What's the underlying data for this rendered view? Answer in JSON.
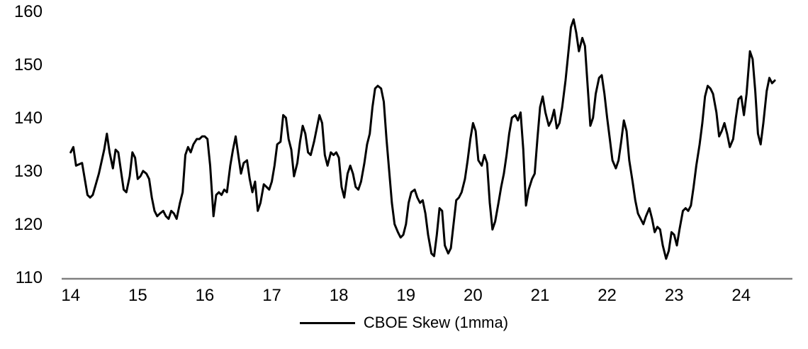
{
  "chart_data": {
    "type": "line",
    "title": "",
    "xlabel": "",
    "ylabel": "",
    "xlim": [
      13.95,
      24.7
    ],
    "ylim": [
      110,
      160
    ],
    "x_ticks": [
      14,
      15,
      16,
      17,
      18,
      19,
      20,
      21,
      22,
      23,
      24
    ],
    "y_ticks": [
      110,
      120,
      130,
      140,
      150,
      160
    ],
    "grid": false,
    "legend_position": "bottom",
    "line_color": "#000000",
    "axis_color": "#808080",
    "series": [
      {
        "name": "CBOE Skew (1mma)",
        "points": [
          [
            14.0,
            133.5
          ],
          [
            14.04,
            134.5
          ],
          [
            14.08,
            131.0
          ],
          [
            14.17,
            131.5
          ],
          [
            14.25,
            125.5
          ],
          [
            14.29,
            125.0
          ],
          [
            14.33,
            125.5
          ],
          [
            14.42,
            129.5
          ],
          [
            14.5,
            134.0
          ],
          [
            14.54,
            137.0
          ],
          [
            14.58,
            133.5
          ],
          [
            14.63,
            130.5
          ],
          [
            14.67,
            134.0
          ],
          [
            14.71,
            133.5
          ],
          [
            14.75,
            130.0
          ],
          [
            14.79,
            126.5
          ],
          [
            14.83,
            126.0
          ],
          [
            14.88,
            129.0
          ],
          [
            14.92,
            133.5
          ],
          [
            14.96,
            132.5
          ],
          [
            15.0,
            128.5
          ],
          [
            15.04,
            129.0
          ],
          [
            15.08,
            130.0
          ],
          [
            15.13,
            129.5
          ],
          [
            15.17,
            128.5
          ],
          [
            15.21,
            125.0
          ],
          [
            15.25,
            122.5
          ],
          [
            15.29,
            121.5
          ],
          [
            15.33,
            122.0
          ],
          [
            15.38,
            122.5
          ],
          [
            15.42,
            121.5
          ],
          [
            15.46,
            121.0
          ],
          [
            15.5,
            122.5
          ],
          [
            15.54,
            122.0
          ],
          [
            15.58,
            121.0
          ],
          [
            15.63,
            124.0
          ],
          [
            15.67,
            126.0
          ],
          [
            15.71,
            133.0
          ],
          [
            15.75,
            134.5
          ],
          [
            15.79,
            133.5
          ],
          [
            15.83,
            135.0
          ],
          [
            15.88,
            136.0
          ],
          [
            15.92,
            136.0
          ],
          [
            15.96,
            136.5
          ],
          [
            16.0,
            136.5
          ],
          [
            16.04,
            136.0
          ],
          [
            16.08,
            131.0
          ],
          [
            16.13,
            121.5
          ],
          [
            16.17,
            125.5
          ],
          [
            16.21,
            126.0
          ],
          [
            16.25,
            125.5
          ],
          [
            16.29,
            126.5
          ],
          [
            16.33,
            126.0
          ],
          [
            16.38,
            131.0
          ],
          [
            16.42,
            134.0
          ],
          [
            16.46,
            136.5
          ],
          [
            16.5,
            133.0
          ],
          [
            16.54,
            129.5
          ],
          [
            16.58,
            131.5
          ],
          [
            16.63,
            132.0
          ],
          [
            16.67,
            128.5
          ],
          [
            16.71,
            126.0
          ],
          [
            16.75,
            128.0
          ],
          [
            16.79,
            122.5
          ],
          [
            16.83,
            124.0
          ],
          [
            16.88,
            127.5
          ],
          [
            16.92,
            127.0
          ],
          [
            16.96,
            126.5
          ],
          [
            17.0,
            128.0
          ],
          [
            17.04,
            131.0
          ],
          [
            17.08,
            135.0
          ],
          [
            17.13,
            135.5
          ],
          [
            17.17,
            140.5
          ],
          [
            17.21,
            140.0
          ],
          [
            17.25,
            136.0
          ],
          [
            17.29,
            134.0
          ],
          [
            17.33,
            129.0
          ],
          [
            17.38,
            131.5
          ],
          [
            17.42,
            135.5
          ],
          [
            17.46,
            138.5
          ],
          [
            17.5,
            137.0
          ],
          [
            17.54,
            133.5
          ],
          [
            17.58,
            133.0
          ],
          [
            17.63,
            135.5
          ],
          [
            17.67,
            138.0
          ],
          [
            17.71,
            140.5
          ],
          [
            17.75,
            139.0
          ],
          [
            17.79,
            133.0
          ],
          [
            17.83,
            131.0
          ],
          [
            17.88,
            133.5
          ],
          [
            17.92,
            133.0
          ],
          [
            17.96,
            133.5
          ],
          [
            18.0,
            132.5
          ],
          [
            18.04,
            127.0
          ],
          [
            18.08,
            125.0
          ],
          [
            18.13,
            129.5
          ],
          [
            18.17,
            131.0
          ],
          [
            18.21,
            129.5
          ],
          [
            18.25,
            127.0
          ],
          [
            18.29,
            126.5
          ],
          [
            18.33,
            128.0
          ],
          [
            18.38,
            131.5
          ],
          [
            18.42,
            135.0
          ],
          [
            18.46,
            137.0
          ],
          [
            18.5,
            142.0
          ],
          [
            18.54,
            145.5
          ],
          [
            18.58,
            146.0
          ],
          [
            18.63,
            145.5
          ],
          [
            18.67,
            143.0
          ],
          [
            18.71,
            136.0
          ],
          [
            18.75,
            130.0
          ],
          [
            18.79,
            124.0
          ],
          [
            18.83,
            120.0
          ],
          [
            18.88,
            118.5
          ],
          [
            18.92,
            117.5
          ],
          [
            18.96,
            118.0
          ],
          [
            19.0,
            120.0
          ],
          [
            19.04,
            124.0
          ],
          [
            19.08,
            126.0
          ],
          [
            19.13,
            126.5
          ],
          [
            19.17,
            125.0
          ],
          [
            19.21,
            124.0
          ],
          [
            19.25,
            124.5
          ],
          [
            19.29,
            122.0
          ],
          [
            19.33,
            118.0
          ],
          [
            19.38,
            114.5
          ],
          [
            19.42,
            114.0
          ],
          [
            19.46,
            118.0
          ],
          [
            19.5,
            123.0
          ],
          [
            19.54,
            122.5
          ],
          [
            19.58,
            116.0
          ],
          [
            19.63,
            114.5
          ],
          [
            19.67,
            115.5
          ],
          [
            19.71,
            120.0
          ],
          [
            19.75,
            124.5
          ],
          [
            19.79,
            125.0
          ],
          [
            19.83,
            126.0
          ],
          [
            19.88,
            128.5
          ],
          [
            19.92,
            132.0
          ],
          [
            19.96,
            136.0
          ],
          [
            20.0,
            139.0
          ],
          [
            20.04,
            137.5
          ],
          [
            20.08,
            132.0
          ],
          [
            20.13,
            131.0
          ],
          [
            20.17,
            133.0
          ],
          [
            20.21,
            131.5
          ],
          [
            20.25,
            124.0
          ],
          [
            20.29,
            119.0
          ],
          [
            20.33,
            120.5
          ],
          [
            20.38,
            124.0
          ],
          [
            20.42,
            127.0
          ],
          [
            20.46,
            129.5
          ],
          [
            20.5,
            133.0
          ],
          [
            20.54,
            137.0
          ],
          [
            20.58,
            140.0
          ],
          [
            20.63,
            140.5
          ],
          [
            20.67,
            139.5
          ],
          [
            20.71,
            141.0
          ],
          [
            20.75,
            134.0
          ],
          [
            20.79,
            123.5
          ],
          [
            20.83,
            126.5
          ],
          [
            20.88,
            128.5
          ],
          [
            20.92,
            129.5
          ],
          [
            20.96,
            136.0
          ],
          [
            21.0,
            142.0
          ],
          [
            21.04,
            144.0
          ],
          [
            21.08,
            141.0
          ],
          [
            21.13,
            138.5
          ],
          [
            21.17,
            139.5
          ],
          [
            21.21,
            141.5
          ],
          [
            21.25,
            138.0
          ],
          [
            21.29,
            139.0
          ],
          [
            21.33,
            142.0
          ],
          [
            21.38,
            147.0
          ],
          [
            21.42,
            152.0
          ],
          [
            21.46,
            157.0
          ],
          [
            21.5,
            158.5
          ],
          [
            21.54,
            156.0
          ],
          [
            21.58,
            152.5
          ],
          [
            21.63,
            155.0
          ],
          [
            21.67,
            153.5
          ],
          [
            21.71,
            146.0
          ],
          [
            21.75,
            138.5
          ],
          [
            21.79,
            140.0
          ],
          [
            21.83,
            144.5
          ],
          [
            21.88,
            147.5
          ],
          [
            21.92,
            148.0
          ],
          [
            21.96,
            144.5
          ],
          [
            22.0,
            140.0
          ],
          [
            22.04,
            136.0
          ],
          [
            22.08,
            132.0
          ],
          [
            22.13,
            130.5
          ],
          [
            22.17,
            132.0
          ],
          [
            22.21,
            135.5
          ],
          [
            22.25,
            139.5
          ],
          [
            22.29,
            137.5
          ],
          [
            22.33,
            132.0
          ],
          [
            22.38,
            128.0
          ],
          [
            22.42,
            124.5
          ],
          [
            22.46,
            122.0
          ],
          [
            22.5,
            121.0
          ],
          [
            22.54,
            120.0
          ],
          [
            22.58,
            121.5
          ],
          [
            22.63,
            123.0
          ],
          [
            22.67,
            121.0
          ],
          [
            22.71,
            118.5
          ],
          [
            22.75,
            119.5
          ],
          [
            22.79,
            119.0
          ],
          [
            22.83,
            116.0
          ],
          [
            22.88,
            113.5
          ],
          [
            22.92,
            115.0
          ],
          [
            22.96,
            118.5
          ],
          [
            23.0,
            118.0
          ],
          [
            23.04,
            116.0
          ],
          [
            23.08,
            119.0
          ],
          [
            23.13,
            122.5
          ],
          [
            23.17,
            123.0
          ],
          [
            23.21,
            122.5
          ],
          [
            23.25,
            123.5
          ],
          [
            23.29,
            127.0
          ],
          [
            23.33,
            131.0
          ],
          [
            23.38,
            135.0
          ],
          [
            23.42,
            139.0
          ],
          [
            23.46,
            144.0
          ],
          [
            23.5,
            146.0
          ],
          [
            23.54,
            145.5
          ],
          [
            23.58,
            144.5
          ],
          [
            23.63,
            141.0
          ],
          [
            23.67,
            136.5
          ],
          [
            23.71,
            137.5
          ],
          [
            23.75,
            139.0
          ],
          [
            23.79,
            137.0
          ],
          [
            23.83,
            134.5
          ],
          [
            23.88,
            136.0
          ],
          [
            23.92,
            140.0
          ],
          [
            23.96,
            143.5
          ],
          [
            24.0,
            144.0
          ],
          [
            24.04,
            140.5
          ],
          [
            24.08,
            144.5
          ],
          [
            24.13,
            152.5
          ],
          [
            24.17,
            151.0
          ],
          [
            24.21,
            145.0
          ],
          [
            24.25,
            137.0
          ],
          [
            24.29,
            135.0
          ],
          [
            24.33,
            139.0
          ],
          [
            24.38,
            145.0
          ],
          [
            24.42,
            147.5
          ],
          [
            24.46,
            146.5
          ],
          [
            24.5,
            147.0
          ]
        ]
      }
    ]
  },
  "legend": {
    "label": "CBOE Skew (1mma)"
  }
}
